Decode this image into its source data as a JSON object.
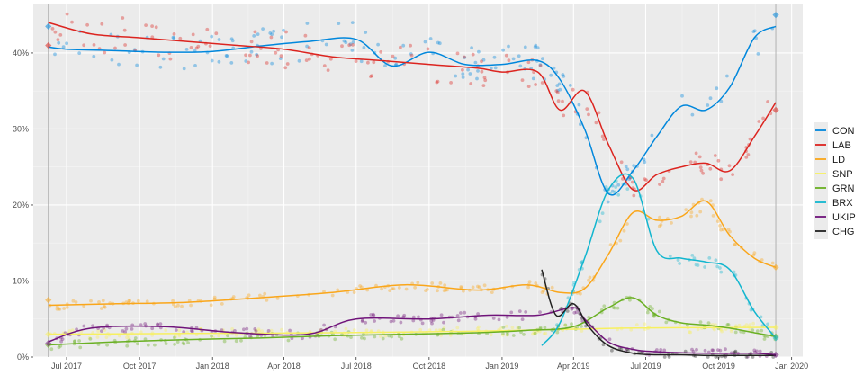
{
  "chart_data": {
    "type": "line",
    "title": "",
    "xlabel": "",
    "ylabel": "",
    "ylim": [
      0,
      46.5
    ],
    "x_ticks": [
      "2017-07-01",
      "2017-10-01",
      "2018-01-01",
      "2018-04-01",
      "2018-07-01",
      "2018-10-01",
      "2019-01-01",
      "2019-04-01",
      "2019-07-01",
      "2019-10-01",
      "2020-01-01"
    ],
    "x_tick_labels": [
      "Jul 2017",
      "Oct 2017",
      "Jan 2018",
      "Apr 2018",
      "Jul 2018",
      "Oct 2018",
      "Jan 2019",
      "Apr 2019",
      "Jul 2019",
      "Oct 2019",
      "Jan 2020"
    ],
    "y_ticks": [
      0,
      10,
      20,
      30,
      40
    ],
    "y_tick_labels": [
      "0%",
      "10%",
      "20%",
      "30%",
      "40%"
    ],
    "vlines": [
      "2017-06-08",
      "2019-12-12"
    ],
    "grid": true,
    "legend_position": "right",
    "series": [
      {
        "name": "CON",
        "color": "#0087DC",
        "x": [
          "2017-06-08",
          "2017-07-01",
          "2017-09-01",
          "2017-11-01",
          "2018-01-01",
          "2018-03-01",
          "2018-05-01",
          "2018-07-01",
          "2018-08-15",
          "2018-10-01",
          "2018-11-15",
          "2019-01-01",
          "2019-02-15",
          "2019-03-15",
          "2019-04-15",
          "2019-05-15",
          "2019-06-15",
          "2019-07-15",
          "2019-08-15",
          "2019-09-15",
          "2019-10-15",
          "2019-11-15",
          "2019-12-12"
        ],
        "y": [
          40.8,
          40.5,
          40.3,
          40.1,
          40.2,
          40.9,
          41.5,
          41.8,
          38.3,
          40.1,
          38.5,
          38.5,
          39.0,
          36.5,
          30.0,
          21.5,
          24.5,
          29.0,
          33.0,
          32.5,
          35.5,
          42.0,
          43.5
        ],
        "endpoints": [
          43.5,
          45.0
        ]
      },
      {
        "name": "LAB",
        "color": "#DC241F",
        "x": [
          "2017-06-08",
          "2017-08-01",
          "2017-10-01",
          "2017-12-01",
          "2018-02-01",
          "2018-04-01",
          "2018-06-01",
          "2018-08-01",
          "2018-10-01",
          "2018-12-01",
          "2019-01-01",
          "2019-02-15",
          "2019-03-15",
          "2019-04-15",
          "2019-05-15",
          "2019-06-15",
          "2019-07-15",
          "2019-08-15",
          "2019-09-15",
          "2019-10-15",
          "2019-11-15",
          "2019-12-12"
        ],
        "y": [
          44.0,
          42.5,
          42.0,
          41.5,
          41.0,
          40.5,
          39.5,
          39.0,
          38.5,
          38.0,
          37.5,
          37.5,
          32.5,
          35.0,
          28.0,
          22.0,
          24.0,
          25.0,
          25.5,
          24.5,
          29.0,
          33.5
        ],
        "endpoints": [
          41.0,
          32.5
        ]
      },
      {
        "name": "LD",
        "color": "#FAA61A",
        "x": [
          "2017-06-08",
          "2017-09-01",
          "2017-12-01",
          "2018-03-01",
          "2018-06-01",
          "2018-09-01",
          "2018-12-01",
          "2019-02-01",
          "2019-03-15",
          "2019-04-15",
          "2019-05-15",
          "2019-06-15",
          "2019-07-15",
          "2019-08-15",
          "2019-09-15",
          "2019-10-15",
          "2019-11-15",
          "2019-12-12"
        ],
        "y": [
          6.8,
          7.0,
          7.2,
          7.8,
          8.5,
          9.5,
          8.8,
          9.5,
          8.5,
          9.0,
          13.5,
          19.0,
          18.0,
          18.5,
          20.5,
          16.0,
          13.0,
          11.8
        ],
        "endpoints": [
          7.5,
          11.8
        ]
      },
      {
        "name": "SNP",
        "color": "#F7F060",
        "x": [
          "2017-06-08",
          "2017-12-01",
          "2018-06-01",
          "2018-12-01",
          "2019-06-01",
          "2019-12-12"
        ],
        "y": [
          3.0,
          3.1,
          3.2,
          3.4,
          3.8,
          3.9
        ],
        "endpoints": [
          3.0,
          3.9
        ]
      },
      {
        "name": "GRN",
        "color": "#6AB023",
        "x": [
          "2017-06-08",
          "2017-09-01",
          "2017-12-01",
          "2018-03-01",
          "2018-06-01",
          "2018-09-01",
          "2018-12-01",
          "2019-02-01",
          "2019-04-01",
          "2019-05-15",
          "2019-06-15",
          "2019-07-15",
          "2019-08-15",
          "2019-09-15",
          "2019-10-15",
          "2019-11-15",
          "2019-12-12"
        ],
        "y": [
          1.6,
          2.0,
          2.3,
          2.5,
          2.8,
          3.0,
          3.2,
          3.5,
          4.0,
          6.5,
          7.8,
          5.5,
          4.5,
          4.2,
          3.8,
          3.2,
          2.7
        ],
        "endpoints": [
          1.6,
          2.7
        ]
      },
      {
        "name": "BRX",
        "color": "#12B6CF",
        "x": [
          "2019-02-20",
          "2019-03-15",
          "2019-04-15",
          "2019-05-15",
          "2019-06-15",
          "2019-07-15",
          "2019-08-15",
          "2019-09-15",
          "2019-10-15",
          "2019-11-15",
          "2019-12-12"
        ],
        "y": [
          1.5,
          4.5,
          13.0,
          22.0,
          23.5,
          14.0,
          13.0,
          12.5,
          11.5,
          6.0,
          2.5
        ],
        "endpoints": [
          null,
          2.5
        ]
      },
      {
        "name": "UKIP",
        "color": "#70147A",
        "x": [
          "2017-06-08",
          "2017-08-01",
          "2017-11-01",
          "2018-02-01",
          "2018-05-01",
          "2018-07-01",
          "2018-10-01",
          "2018-12-15",
          "2019-02-15",
          "2019-04-01",
          "2019-04-15",
          "2019-05-15",
          "2019-06-15",
          "2019-07-15",
          "2019-09-15",
          "2019-11-15",
          "2019-12-12"
        ],
        "y": [
          2.0,
          3.8,
          4.0,
          3.2,
          3.0,
          5.0,
          5.0,
          5.5,
          5.5,
          6.5,
          5.0,
          2.0,
          1.0,
          0.7,
          0.5,
          0.5,
          0.3
        ],
        "endpoints": [
          1.8,
          0.3
        ]
      },
      {
        "name": "CHG",
        "color": "#222221",
        "x": [
          "2019-02-20",
          "2019-03-10",
          "2019-04-01",
          "2019-04-20",
          "2019-05-15",
          "2019-06-15",
          "2019-07-15",
          "2019-08-15",
          "2019-09-15",
          "2019-10-15",
          "2019-11-15",
          "2019-12-12"
        ],
        "y": [
          11.5,
          5.5,
          7.0,
          4.0,
          1.5,
          0.5,
          0.3,
          0.3,
          0.2,
          0.2,
          0.2,
          0.2
        ],
        "endpoints": [
          null,
          null
        ]
      }
    ]
  }
}
